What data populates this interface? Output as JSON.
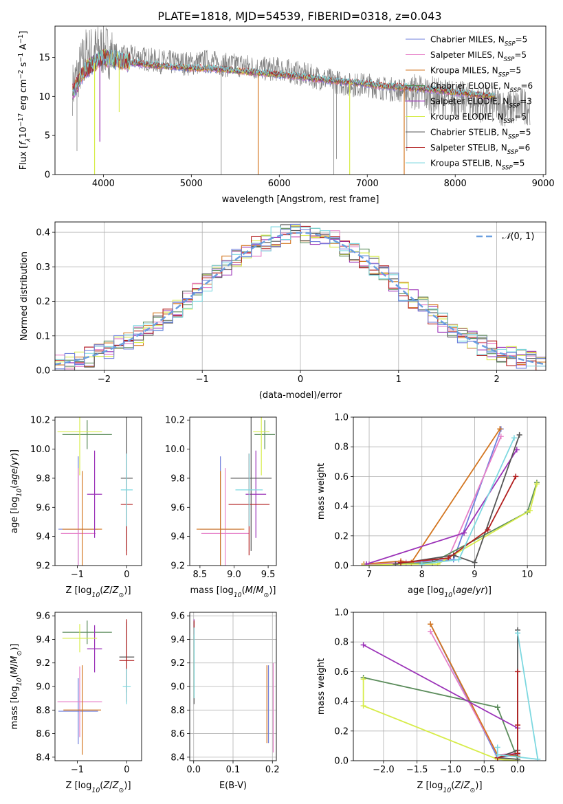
{
  "figure": {
    "title": "PLATE=1818, MJD=54539, FIBERID=0318, z=0.043"
  },
  "legend_styles": [
    {
      "label": "Chabrier MILES, N_SSP=5",
      "label_main": "Chabrier MILES, N",
      "sub": "SSP",
      "tail": "=5",
      "color": "#6f7fdc"
    },
    {
      "label": "Salpeter MILES, N_SSP=5",
      "label_main": "Salpeter MILES, N",
      "sub": "SSP",
      "tail": "=5",
      "color": "#e67fc8"
    },
    {
      "label": "Kroupa MILES, N_SSP=5",
      "label_main": "Kroupa MILES, N",
      "sub": "SSP",
      "tail": "=5",
      "color": "#d3751f"
    },
    {
      "label": "Chabrier ELODIE, N_SSP=6",
      "label_main": "Chabrier ELODIE, N",
      "sub": "SSP",
      "tail": "=6",
      "color": "#5b8c5b"
    },
    {
      "label": "Salpeter ELODIE, N_SSP=3",
      "label_main": "Salpeter ELODIE, N",
      "sub": "SSP",
      "tail": "=3",
      "color": "#9b32b8"
    },
    {
      "label": "Kroupa ELODIE, N_SSP=5",
      "label_main": "Kroupa ELODIE, N",
      "sub": "SSP",
      "tail": "=5",
      "color": "#d7ec4a"
    },
    {
      "label": "Chabrier STELIB, N_SSP=5",
      "label_main": "Chabrier STELIB, N",
      "sub": "SSP",
      "tail": "=5",
      "color": "#555555"
    },
    {
      "label": "Salpeter STELIB, N_SSP=6",
      "label_main": "Salpeter STELIB, N",
      "sub": "SSP",
      "tail": "=6",
      "color": "#b21f1f"
    },
    {
      "label": "Kroupa STELIB, N_SSP=5",
      "label_main": "Kroupa STELIB, N",
      "sub": "SSP",
      "tail": "=5",
      "color": "#7dd8e0"
    }
  ],
  "chart_data": [
    {
      "id": "spectrum",
      "type": "line",
      "title": "PLATE=1818, MJD=54539, FIBERID=0318, z=0.043",
      "xlabel": "wavelength [Angstrom, rest frame]",
      "ylabel": "Flux [f_λ 10^-17 erg cm^-2 s^-1 A^-1]",
      "xlim": [
        3450,
        9030
      ],
      "ylim": [
        0,
        19
      ],
      "xticks": [
        4000,
        5000,
        6000,
        7000,
        8000,
        9000
      ],
      "yticks": [
        0,
        5,
        10,
        15
      ],
      "grid": false,
      "legend_placement": "right",
      "data_series": {
        "name": "data",
        "color": "#808080",
        "x": [
          3650,
          3800,
          4000,
          4200,
          4400,
          4600,
          4800,
          5000,
          5200,
          5400,
          5600,
          5800,
          6000,
          6200,
          6400,
          6600,
          6800,
          7000,
          7200,
          7400,
          7600,
          7800,
          8000,
          8200,
          8400,
          8600,
          8800
        ],
        "y": [
          11,
          15.5,
          16,
          15,
          15,
          14.5,
          14.3,
          14.2,
          14.5,
          14,
          14,
          13.5,
          13.5,
          13,
          12.5,
          12,
          11.5,
          11.5,
          11,
          10.8,
          10.5,
          10,
          9.7,
          9.2,
          9,
          8.5,
          8.8
        ]
      },
      "model_x": [
        3650,
        3800,
        4000,
        4200,
        4400,
        4600,
        4800,
        5000,
        5200,
        5400,
        5600,
        5800,
        6000,
        6200,
        6400,
        6600,
        6800,
        7000,
        7200,
        7400,
        7600,
        7800,
        8000,
        8200,
        8400
      ],
      "model_y": [
        10.5,
        13.5,
        15,
        14.5,
        14.2,
        14,
        13.8,
        13.6,
        13.6,
        13.4,
        13.2,
        13,
        12.8,
        12.6,
        12.3,
        12,
        11.8,
        11.6,
        11.3,
        11.2,
        11,
        10.8,
        10.5,
        10.3,
        10
      ],
      "series": [
        {
          "name": "Chabrier MILES, N_SSP=5",
          "color": "#6f7fdc"
        },
        {
          "name": "Salpeter MILES, N_SSP=5",
          "color": "#e67fc8"
        },
        {
          "name": "Kroupa MILES, N_SSP=5",
          "color": "#d3751f"
        },
        {
          "name": "Chabrier ELODIE, N_SSP=6",
          "color": "#5b8c5b"
        },
        {
          "name": "Salpeter ELODIE, N_SSP=3",
          "color": "#9b32b8"
        },
        {
          "name": "Kroupa ELODIE, N_SSP=5",
          "color": "#d7ec4a"
        },
        {
          "name": "Chabrier STELIB, N_SSP=5",
          "color": "#555555"
        },
        {
          "name": "Salpeter STELIB, N_SSP=6",
          "color": "#b21f1f"
        },
        {
          "name": "Kroupa STELIB, N_SSP=5",
          "color": "#7dd8e0"
        }
      ]
    },
    {
      "id": "residuals",
      "type": "area",
      "xlabel": "(data-model)/error",
      "ylabel": "Normed distribution",
      "xlim": [
        -2.5,
        2.5
      ],
      "ylim": [
        0,
        0.43
      ],
      "xticks": [
        -2,
        -1,
        0,
        1,
        2
      ],
      "yticks": [
        0.0,
        0.1,
        0.2,
        0.3,
        0.4
      ],
      "grid": true,
      "legend": [
        {
          "name": "N(0,1)",
          "color": "#6a9fe0",
          "style": "dashed"
        }
      ],
      "legend_placement": "top-right",
      "bin_width": 0.1,
      "gaussian": {
        "mean": 0,
        "sigma": 1
      }
    },
    {
      "id": "age_vs_Z",
      "type": "scatter",
      "xlabel": "Z [log10(Z/Z_sun)]",
      "ylabel": "age [log10(age/yr)]",
      "xlim": [
        -1.45,
        0.3
      ],
      "ylim": [
        9.2,
        10.22
      ],
      "xticks": [
        -1,
        0
      ],
      "yticks": [
        9.2,
        9.4,
        9.6,
        9.8,
        10.0,
        10.2
      ],
      "grid": false,
      "points": [
        {
          "color": "#6f7fdc",
          "x": -0.98,
          "y": 9.45,
          "xerr": 0.4,
          "yerr": 0.5
        },
        {
          "color": "#e67fc8",
          "x": -0.98,
          "y": 9.42,
          "xerr": 0.35,
          "yerr": 0.45
        },
        {
          "color": "#d3751f",
          "x": -0.9,
          "y": 9.45,
          "xerr": 0.4,
          "yerr": 0.4
        },
        {
          "color": "#5b8c5b",
          "x": -0.8,
          "y": 10.1,
          "xerr": 0.5,
          "yerr": 0.1
        },
        {
          "color": "#9b32b8",
          "x": -0.65,
          "y": 9.69,
          "xerr": 0.15,
          "yerr": 0.3
        },
        {
          "color": "#d7ec4a",
          "x": -0.95,
          "y": 10.12,
          "xerr": 0.45,
          "yerr": 0.3
        },
        {
          "color": "#555555",
          "x": 0.0,
          "y": 9.8,
          "xerr": 0.12,
          "yerr": 0.5
        },
        {
          "color": "#b21f1f",
          "x": 0.0,
          "y": 9.62,
          "xerr": 0.12,
          "yerr": 0.35
        },
        {
          "color": "#7dd8e0",
          "x": 0.0,
          "y": 9.72,
          "xerr": 0.12,
          "yerr": 0.25
        }
      ]
    },
    {
      "id": "age_vs_mass",
      "type": "scatter",
      "xlabel": "mass [log10(M/M_sun)]",
      "ylabel": "",
      "xlim": [
        8.35,
        9.62
      ],
      "ylim": [
        9.2,
        10.22
      ],
      "xticks": [
        8.5,
        9.0,
        9.5
      ],
      "yticks": [
        9.2,
        9.4,
        9.6,
        9.8,
        10.0,
        10.2
      ],
      "grid": false,
      "points": [
        {
          "color": "#6f7fdc",
          "x": 8.8,
          "y": 9.45,
          "xerr": 0.3,
          "yerr": 0.5
        },
        {
          "color": "#e67fc8",
          "x": 8.87,
          "y": 9.42,
          "xerr": 0.35,
          "yerr": 0.45
        },
        {
          "color": "#d3751f",
          "x": 8.8,
          "y": 9.45,
          "xerr": 0.35,
          "yerr": 0.4
        },
        {
          "color": "#5b8c5b",
          "x": 9.45,
          "y": 10.1,
          "xerr": 0.15,
          "yerr": 0.1
        },
        {
          "color": "#9b32b8",
          "x": 9.32,
          "y": 9.69,
          "xerr": 0.15,
          "yerr": 0.3
        },
        {
          "color": "#d7ec4a",
          "x": 9.4,
          "y": 10.12,
          "xerr": 0.12,
          "yerr": 0.3
        },
        {
          "color": "#555555",
          "x": 9.25,
          "y": 9.8,
          "xerr": 0.3,
          "yerr": 0.5
        },
        {
          "color": "#b21f1f",
          "x": 9.22,
          "y": 9.62,
          "xerr": 0.3,
          "yerr": 0.35
        },
        {
          "color": "#7dd8e0",
          "x": 9.22,
          "y": 9.72,
          "xerr": 0.2,
          "yerr": 0.25
        }
      ]
    },
    {
      "id": "weight_vs_age",
      "type": "line",
      "xlabel": "age [log10(age/yr)]",
      "ylabel": "mass weight",
      "xlim": [
        6.7,
        10.35
      ],
      "ylim": [
        0,
        1.0
      ],
      "xticks": [
        7,
        8,
        9,
        10
      ],
      "yticks": [
        0.0,
        0.2,
        0.4,
        0.6,
        0.8,
        1.0
      ],
      "grid": true,
      "series": [
        {
          "color": "#6f7fdc",
          "x": [
            7.0,
            7.7,
            8.6,
            9.5
          ],
          "y": [
            0.01,
            0.02,
            0.04,
            0.92
          ]
        },
        {
          "color": "#e67fc8",
          "x": [
            7.0,
            7.7,
            8.5,
            9.5
          ],
          "y": [
            0.01,
            0.02,
            0.05,
            0.87
          ]
        },
        {
          "color": "#d3751f",
          "x": [
            6.9,
            7.6,
            7.8,
            9.48
          ],
          "y": [
            0.01,
            0.03,
            0.02,
            0.92
          ]
        },
        {
          "color": "#5b8c5b",
          "x": [
            6.9,
            7.5,
            8.2,
            10.0,
            10.18
          ],
          "y": [
            0.0,
            0.01,
            0.02,
            0.36,
            0.56
          ]
        },
        {
          "color": "#9b32b8",
          "x": [
            6.95,
            8.8,
            9.8
          ],
          "y": [
            0.01,
            0.22,
            0.78
          ]
        },
        {
          "color": "#d7ec4a",
          "x": [
            6.9,
            7.6,
            8.3,
            10.05,
            10.18
          ],
          "y": [
            0.0,
            0.01,
            0.01,
            0.37,
            0.55
          ]
        },
        {
          "color": "#555555",
          "x": [
            7.5,
            8.6,
            9.0,
            9.85
          ],
          "y": [
            0.01,
            0.07,
            0.02,
            0.88
          ]
        },
        {
          "color": "#b21f1f",
          "x": [
            7.6,
            8.5,
            9.25,
            9.78
          ],
          "y": [
            0.02,
            0.05,
            0.24,
            0.6
          ]
        },
        {
          "color": "#7dd8e0",
          "x": [
            8.0,
            8.7,
            9.75
          ],
          "y": [
            0.01,
            0.04,
            0.86
          ]
        }
      ]
    },
    {
      "id": "mass_vs_Z",
      "type": "scatter",
      "xlabel": "Z [log10(Z/Z_sun)]",
      "ylabel": "mass [log10(M/M_sun)]",
      "xlim": [
        -1.45,
        0.3
      ],
      "ylim": [
        8.37,
        9.63
      ],
      "xticks": [
        -1,
        0
      ],
      "yticks": [
        8.4,
        8.6,
        8.8,
        9.0,
        9.2,
        9.4,
        9.6
      ],
      "grid": false,
      "points": [
        {
          "color": "#6f7fdc",
          "x": -0.98,
          "y": 8.79,
          "xerr": 0.4,
          "yerr": 0.28
        },
        {
          "color": "#e67fc8",
          "x": -0.95,
          "y": 8.87,
          "xerr": 0.45,
          "yerr": 0.3
        },
        {
          "color": "#d3751f",
          "x": -0.9,
          "y": 8.8,
          "xerr": 0.38,
          "yerr": 0.38
        },
        {
          "color": "#5b8c5b",
          "x": -0.8,
          "y": 9.46,
          "xerr": 0.5,
          "yerr": 0.1
        },
        {
          "color": "#9b32b8",
          "x": -0.65,
          "y": 9.32,
          "xerr": 0.15,
          "yerr": 0.2
        },
        {
          "color": "#d7ec4a",
          "x": -0.95,
          "y": 9.41,
          "xerr": 0.35,
          "yerr": 0.12
        },
        {
          "color": "#555555",
          "x": 0.0,
          "y": 9.25,
          "xerr": 0.15,
          "yerr": 0.3
        },
        {
          "color": "#b21f1f",
          "x": 0.0,
          "y": 9.22,
          "xerr": 0.15,
          "yerr": 0.35
        },
        {
          "color": "#7dd8e0",
          "x": 0.0,
          "y": 9.0,
          "xerr": 0.08,
          "yerr": 0.15
        }
      ]
    },
    {
      "id": "mass_vs_EBV",
      "type": "scatter",
      "xlabel": "E(B-V)",
      "ylabel": "",
      "xlim": [
        -0.01,
        0.21
      ],
      "ylim": [
        8.37,
        9.63
      ],
      "xticks": [
        0.0,
        0.1,
        0.2
      ],
      "yticks": [
        8.4,
        8.6,
        8.8,
        9.0,
        9.2,
        9.4,
        9.6
      ],
      "grid": true,
      "points": [
        {
          "color": "#6f7fdc",
          "x": 0.19,
          "y": 8.85,
          "xerr": 0.0,
          "yerr": 0.33
        },
        {
          "color": "#e67fc8",
          "x": 0.202,
          "y": 8.82,
          "xerr": 0.0,
          "yerr": 0.38
        },
        {
          "color": "#d3751f",
          "x": 0.186,
          "y": 8.85,
          "xerr": 0.0,
          "yerr": 0.33
        },
        {
          "color": "#5b8c5b",
          "x": 0.001,
          "y": 9.2,
          "xerr": 0.0,
          "yerr": 0.3
        },
        {
          "color": "#9b32b8",
          "x": 0.001,
          "y": 9.45,
          "xerr": 0.0,
          "yerr": 0.12
        },
        {
          "color": "#d7ec4a",
          "x": 0.001,
          "y": 9.2,
          "xerr": 0.0,
          "yerr": 0.3
        },
        {
          "color": "#555555",
          "x": 0.001,
          "y": 9.2,
          "xerr": 0.0,
          "yerr": 0.35
        },
        {
          "color": "#b21f1f",
          "x": 0.001,
          "y": 9.5,
          "xerr": 0.0,
          "yerr": 0.06
        },
        {
          "color": "#7dd8e0",
          "x": 0.001,
          "y": 9.2,
          "xerr": 0.0,
          "yerr": 0.3
        }
      ]
    },
    {
      "id": "weight_vs_Z",
      "type": "line",
      "xlabel": "Z [log10(Z/Z_sun)]",
      "ylabel": "mass weight",
      "xlim": [
        -2.45,
        0.42
      ],
      "ylim": [
        0,
        1.0
      ],
      "xticks": [
        -2.0,
        -1.5,
        -1.0,
        -0.5,
        0.0
      ],
      "yticks": [
        0.0,
        0.2,
        0.4,
        0.6,
        0.8,
        1.0
      ],
      "grid": true,
      "series": [
        {
          "color": "#6f7fdc",
          "x": [
            -1.3,
            -0.3,
            0.0
          ],
          "y": [
            0.92,
            0.02,
            0.04
          ]
        },
        {
          "color": "#e67fc8",
          "x": [
            -1.3,
            -0.3,
            0.0
          ],
          "y": [
            0.87,
            0.04,
            0.05
          ]
        },
        {
          "color": "#d3751f",
          "x": [
            -1.3,
            -0.3,
            0.0
          ],
          "y": [
            0.92,
            0.04,
            0.03
          ]
        },
        {
          "color": "#5b8c5b",
          "x": [
            -2.3,
            -0.3,
            0.0
          ],
          "y": [
            0.56,
            0.36,
            0.01
          ]
        },
        {
          "color": "#9b32b8",
          "x": [
            -2.3,
            0.0
          ],
          "y": [
            0.78,
            0.22
          ]
        },
        {
          "color": "#d7ec4a",
          "x": [
            -2.3,
            -2.3,
            -0.3,
            0.0
          ],
          "y": [
            0.55,
            0.37,
            0.01,
            0.0
          ]
        },
        {
          "color": "#555555",
          "x": [
            0.0,
            0.0,
            -0.3,
            0.0
          ],
          "y": [
            0.88,
            0.07,
            0.02,
            0.01
          ]
        },
        {
          "color": "#b21f1f",
          "x": [
            0.0,
            0.0,
            0.0,
            -0.3
          ],
          "y": [
            0.6,
            0.24,
            0.05,
            0.02
          ]
        },
        {
          "color": "#7dd8e0",
          "x": [
            0.0,
            0.3,
            -0.3,
            -0.3
          ],
          "y": [
            0.86,
            0.01,
            0.04,
            0.09
          ]
        }
      ]
    }
  ]
}
